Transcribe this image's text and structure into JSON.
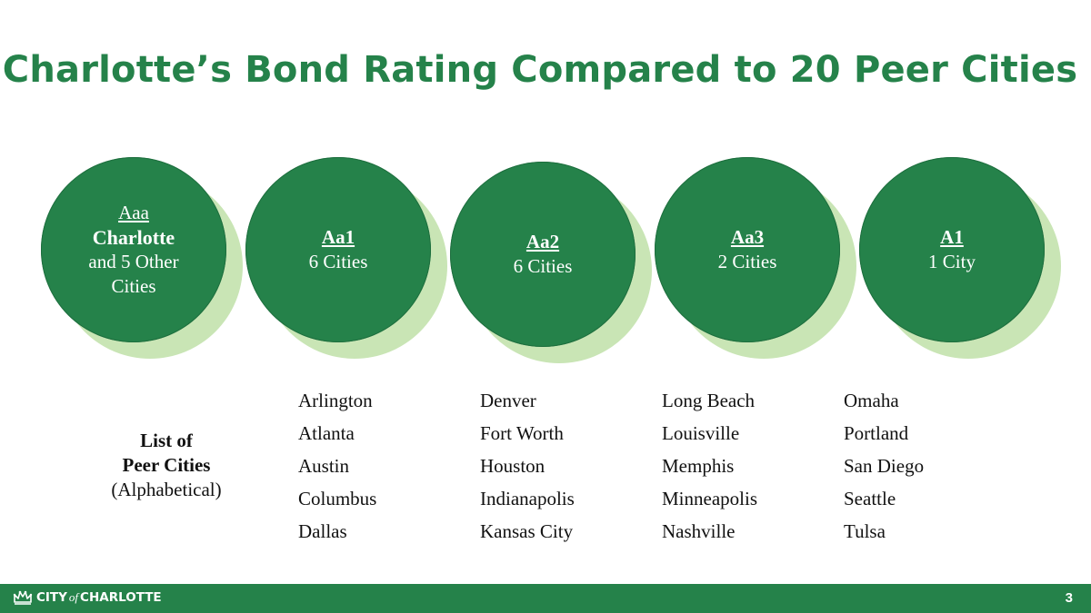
{
  "title": "Charlotte’s Bond Rating Compared to 20 Peer Cities",
  "bubbles": [
    {
      "rating": "Aaa",
      "name": "Charlotte",
      "sub_line1": "and 5 Other",
      "sub_line2": "Cities"
    },
    {
      "rating": "Aa1",
      "count": "6 Cities"
    },
    {
      "rating": "Aa2",
      "count": "6 Cities"
    },
    {
      "rating": "Aa3",
      "count": "2 Cities"
    },
    {
      "rating": "A1",
      "count": "1 City"
    }
  ],
  "peer_label": {
    "line1": "List of",
    "line2": "Peer Cities",
    "line3": "(Alphabetical)"
  },
  "columns": [
    [
      "Arlington",
      "Atlanta",
      "Austin",
      "Columbus",
      "Dallas"
    ],
    [
      "Denver",
      "Fort Worth",
      "Houston",
      "Indianapolis",
      "Kansas City"
    ],
    [
      "Long Beach",
      "Louisville",
      "Memphis",
      "Minneapolis",
      "Nashville"
    ],
    [
      "Omaha",
      "Portland",
      "San Diego",
      "Seattle",
      "Tulsa"
    ]
  ],
  "footer": {
    "logo_city": "CITY",
    "logo_of": "of",
    "logo_name": "CHARLOTTE",
    "page_number": "3"
  },
  "colors": {
    "green": "#25824a",
    "shadow": "#c9e5b5"
  }
}
